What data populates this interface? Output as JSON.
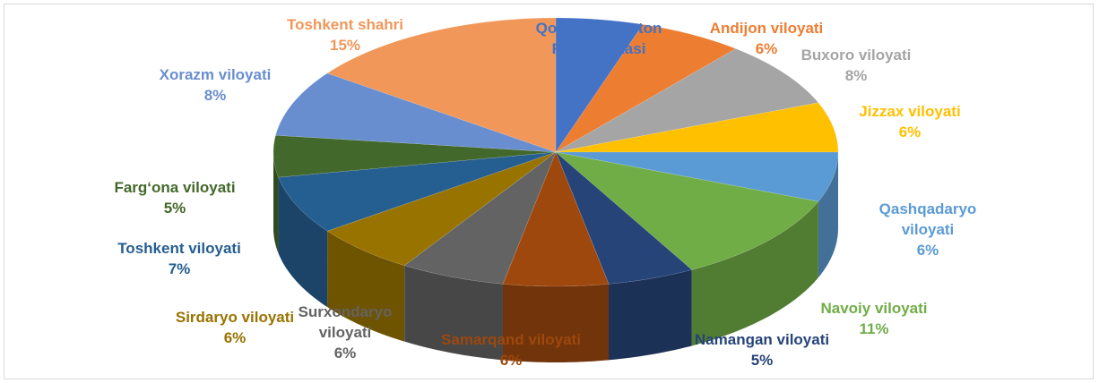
{
  "chart_data": {
    "type": "pie",
    "categories": [
      "Qoraqalpog‘iston Respublikasi",
      "Andijon viloyati",
      "Buxoro viloyati",
      "Jizzax viloyati",
      "Qashqadaryo viloyati",
      "Navoiy viloyati",
      "Namangan viloyati",
      "Samarqand viloyati",
      "Surxondaryo viloyati",
      "Sirdaryo viloyati",
      "Toshkent viloyati",
      "Farg‘ona  viloyati",
      "Xorazm viloyati",
      "Toshkent shahri"
    ],
    "values": [
      5,
      6,
      8,
      6,
      6,
      11,
      5,
      6,
      6,
      6,
      7,
      5,
      8,
      15
    ],
    "value_labels": [
      "5%",
      "6%",
      "8%",
      "6%",
      "6%",
      "11%",
      "5%",
      "6%",
      "6%",
      "6%",
      "7%",
      "5%",
      "8%",
      "15%"
    ],
    "colors": [
      "#4472c4",
      "#ed7d31",
      "#a5a5a5",
      "#ffc000",
      "#5b9bd5",
      "#70ad47",
      "#264478",
      "#9e480e",
      "#636363",
      "#997300",
      "#255e91",
      "#43682b",
      "#698ed0",
      "#f1975a"
    ]
  }
}
